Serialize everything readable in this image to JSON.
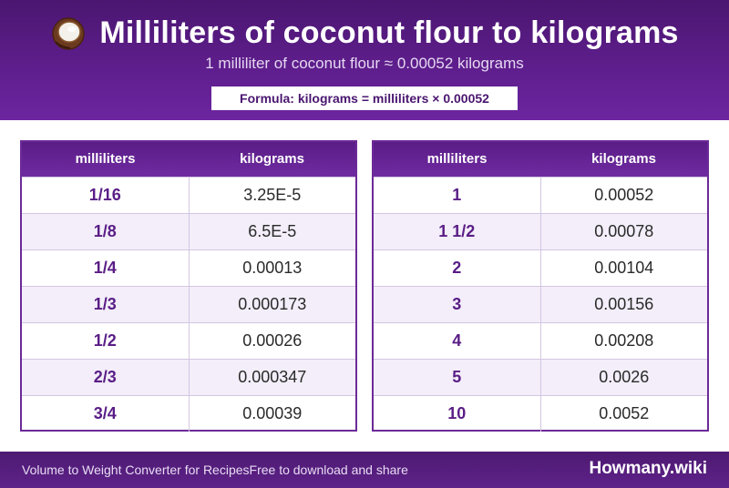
{
  "header": {
    "title": "Milliliters of coconut flour to kilograms",
    "subtitle": "1 milliliter of coconut flour ≈ 0.00052 kilograms",
    "formula": "Formula: kilograms = milliliters × 0.00052",
    "icon": "coconut-icon"
  },
  "tables": [
    {
      "headers": [
        "milliliters",
        "kilograms"
      ],
      "rows": [
        [
          "1/16",
          "3.25E-5"
        ],
        [
          "1/8",
          "6.5E-5"
        ],
        [
          "1/4",
          "0.00013"
        ],
        [
          "1/3",
          "0.000173"
        ],
        [
          "1/2",
          "0.00026"
        ],
        [
          "2/3",
          "0.000347"
        ],
        [
          "3/4",
          "0.00039"
        ]
      ]
    },
    {
      "headers": [
        "milliliters",
        "kilograms"
      ],
      "rows": [
        [
          "1",
          "0.00052"
        ],
        [
          "1 1/2",
          "0.00078"
        ],
        [
          "2",
          "0.00104"
        ],
        [
          "3",
          "0.00156"
        ],
        [
          "4",
          "0.00208"
        ],
        [
          "5",
          "0.0026"
        ],
        [
          "10",
          "0.0052"
        ]
      ]
    }
  ],
  "footer": {
    "left": "Volume to Weight Converter for RecipesFree to download and share",
    "brand": "Howmany.wiki"
  },
  "colors": {
    "header_bg": "#5e1e8c",
    "accent": "#5a1d86",
    "row_alt": "#f3eef9"
  }
}
